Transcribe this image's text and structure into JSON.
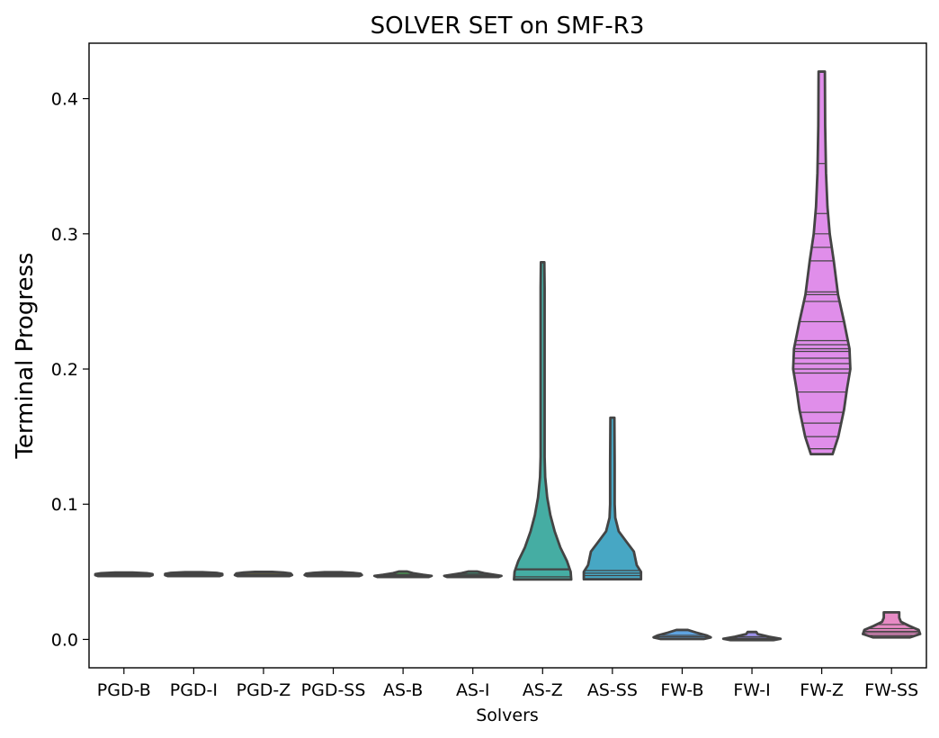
{
  "chart_data": {
    "type": "violin",
    "title": "SOLVER SET on SMF-R3",
    "xlabel": "Solvers",
    "ylabel": "Terminal Progress",
    "ylim": [
      -0.021,
      0.441
    ],
    "yticks": [
      0.0,
      0.1,
      0.2,
      0.3,
      0.4
    ],
    "ytick_labels": [
      "0.0",
      "0.1",
      "0.2",
      "0.3",
      "0.4"
    ],
    "grid": false,
    "categories": [
      "PGD-B",
      "PGD-I",
      "PGD-Z",
      "PGD-SS",
      "AS-B",
      "AS-I",
      "AS-Z",
      "AS-SS",
      "FW-B",
      "FW-I",
      "FW-Z",
      "FW-SS"
    ],
    "series": [
      {
        "category": "PGD-B",
        "color": "#dd8f8a",
        "min": 0.0468,
        "max": 0.0495,
        "density": [
          [
            0.0468,
            0.9
          ],
          [
            0.0475,
            1.0
          ],
          [
            0.0483,
            1.0
          ],
          [
            0.049,
            0.8
          ],
          [
            0.0495,
            0.3
          ]
        ],
        "lines": [
          0.0475,
          0.0482,
          0.0488
        ]
      },
      {
        "category": "PGD-I",
        "color": "#d59b3b",
        "min": 0.0468,
        "max": 0.0497,
        "density": [
          [
            0.0468,
            0.9
          ],
          [
            0.0475,
            1.0
          ],
          [
            0.0485,
            1.0
          ],
          [
            0.0492,
            0.8
          ],
          [
            0.0497,
            0.3
          ]
        ],
        "lines": [
          0.0475,
          0.0482,
          0.049
        ]
      },
      {
        "category": "PGD-Z",
        "color": "#b5a33a",
        "min": 0.0468,
        "max": 0.05,
        "density": [
          [
            0.0468,
            0.9
          ],
          [
            0.0476,
            1.0
          ],
          [
            0.0488,
            0.95
          ],
          [
            0.0495,
            0.7
          ],
          [
            0.05,
            0.3
          ]
        ],
        "lines": [
          0.0476,
          0.0483,
          0.0492
        ]
      },
      {
        "category": "PGD-SS",
        "color": "#8fb13a",
        "min": 0.0468,
        "max": 0.0497,
        "density": [
          [
            0.0468,
            0.9
          ],
          [
            0.0476,
            1.0
          ],
          [
            0.0486,
            0.95
          ],
          [
            0.0492,
            0.7
          ],
          [
            0.0497,
            0.3
          ]
        ],
        "lines": [
          0.0476,
          0.0483,
          0.049
        ]
      },
      {
        "category": "AS-B",
        "color": "#4eb65a",
        "min": 0.0462,
        "max": 0.0502,
        "density": [
          [
            0.0462,
            0.9
          ],
          [
            0.047,
            1.0
          ],
          [
            0.0478,
            0.7
          ],
          [
            0.049,
            0.35
          ],
          [
            0.0502,
            0.15
          ]
        ],
        "lines": [
          0.047,
          0.0475,
          0.0482
        ]
      },
      {
        "category": "AS-I",
        "color": "#3cb48d",
        "min": 0.0462,
        "max": 0.0502,
        "density": [
          [
            0.0462,
            0.9
          ],
          [
            0.047,
            1.0
          ],
          [
            0.0478,
            0.75
          ],
          [
            0.049,
            0.4
          ],
          [
            0.0502,
            0.15
          ]
        ],
        "lines": [
          0.047,
          0.0476,
          0.0484
        ]
      },
      {
        "category": "AS-Z",
        "color": "#45ada3",
        "min": 0.0443,
        "max": 0.279,
        "density": [
          [
            0.0443,
            1.0
          ],
          [
            0.05,
            0.98
          ],
          [
            0.058,
            0.85
          ],
          [
            0.068,
            0.62
          ],
          [
            0.08,
            0.42
          ],
          [
            0.092,
            0.27
          ],
          [
            0.105,
            0.16
          ],
          [
            0.12,
            0.09
          ],
          [
            0.135,
            0.07
          ],
          [
            0.16,
            0.07
          ],
          [
            0.2,
            0.07
          ],
          [
            0.24,
            0.07
          ],
          [
            0.26,
            0.07
          ],
          [
            0.279,
            0.06
          ]
        ],
        "lines": [
          0.0463,
          0.0515,
          0.0522
        ]
      },
      {
        "category": "AS-SS",
        "color": "#47a7c4",
        "min": 0.0445,
        "max": 0.164,
        "density": [
          [
            0.0445,
            1.0
          ],
          [
            0.05,
            1.0
          ],
          [
            0.055,
            0.85
          ],
          [
            0.065,
            0.75
          ],
          [
            0.072,
            0.5
          ],
          [
            0.08,
            0.22
          ],
          [
            0.09,
            0.1
          ],
          [
            0.1,
            0.08
          ],
          [
            0.13,
            0.08
          ],
          [
            0.164,
            0.07
          ]
        ],
        "lines": [
          0.0472,
          0.049,
          0.051
        ]
      },
      {
        "category": "FW-B",
        "color": "#5fa3e0",
        "min": 0.0003,
        "max": 0.007,
        "density": [
          [
            0.0003,
            0.75
          ],
          [
            0.0015,
            1.0
          ],
          [
            0.003,
            0.85
          ],
          [
            0.005,
            0.5
          ],
          [
            0.007,
            0.2
          ]
        ],
        "lines": [
          0.001,
          0.002,
          0.003
        ]
      },
      {
        "category": "FW-I",
        "color": "#9b8fe8",
        "min": -0.0005,
        "max": 0.0055,
        "density": [
          [
            -0.0005,
            0.75
          ],
          [
            0.0005,
            1.0
          ],
          [
            0.002,
            0.6
          ],
          [
            0.004,
            0.2
          ],
          [
            0.0055,
            0.15
          ]
        ],
        "lines": [
          0.0005,
          0.001,
          0.002
        ]
      },
      {
        "category": "FW-Z",
        "color": "#e08eea",
        "min": 0.137,
        "max": 0.42,
        "density": [
          [
            0.137,
            0.38
          ],
          [
            0.15,
            0.58
          ],
          [
            0.17,
            0.78
          ],
          [
            0.185,
            0.88
          ],
          [
            0.2,
            1.0
          ],
          [
            0.215,
            0.97
          ],
          [
            0.235,
            0.78
          ],
          [
            0.255,
            0.57
          ],
          [
            0.28,
            0.42
          ],
          [
            0.3,
            0.28
          ],
          [
            0.32,
            0.2
          ],
          [
            0.345,
            0.15
          ],
          [
            0.38,
            0.12
          ],
          [
            0.42,
            0.11
          ]
        ],
        "lines": [
          0.141,
          0.15,
          0.16,
          0.168,
          0.183,
          0.197,
          0.2,
          0.204,
          0.208,
          0.213,
          0.215,
          0.218,
          0.221,
          0.235,
          0.25,
          0.255,
          0.257,
          0.28,
          0.29,
          0.3,
          0.315,
          0.352
        ]
      },
      {
        "category": "FW-SS",
        "color": "#e78bc5",
        "min": 0.0015,
        "max": 0.02,
        "density": [
          [
            0.0015,
            0.65
          ],
          [
            0.004,
            1.0
          ],
          [
            0.007,
            0.95
          ],
          [
            0.01,
            0.62
          ],
          [
            0.013,
            0.33
          ],
          [
            0.016,
            0.27
          ],
          [
            0.02,
            0.27
          ]
        ],
        "lines": [
          0.003,
          0.005,
          0.006,
          0.008,
          0.011
        ]
      }
    ]
  }
}
